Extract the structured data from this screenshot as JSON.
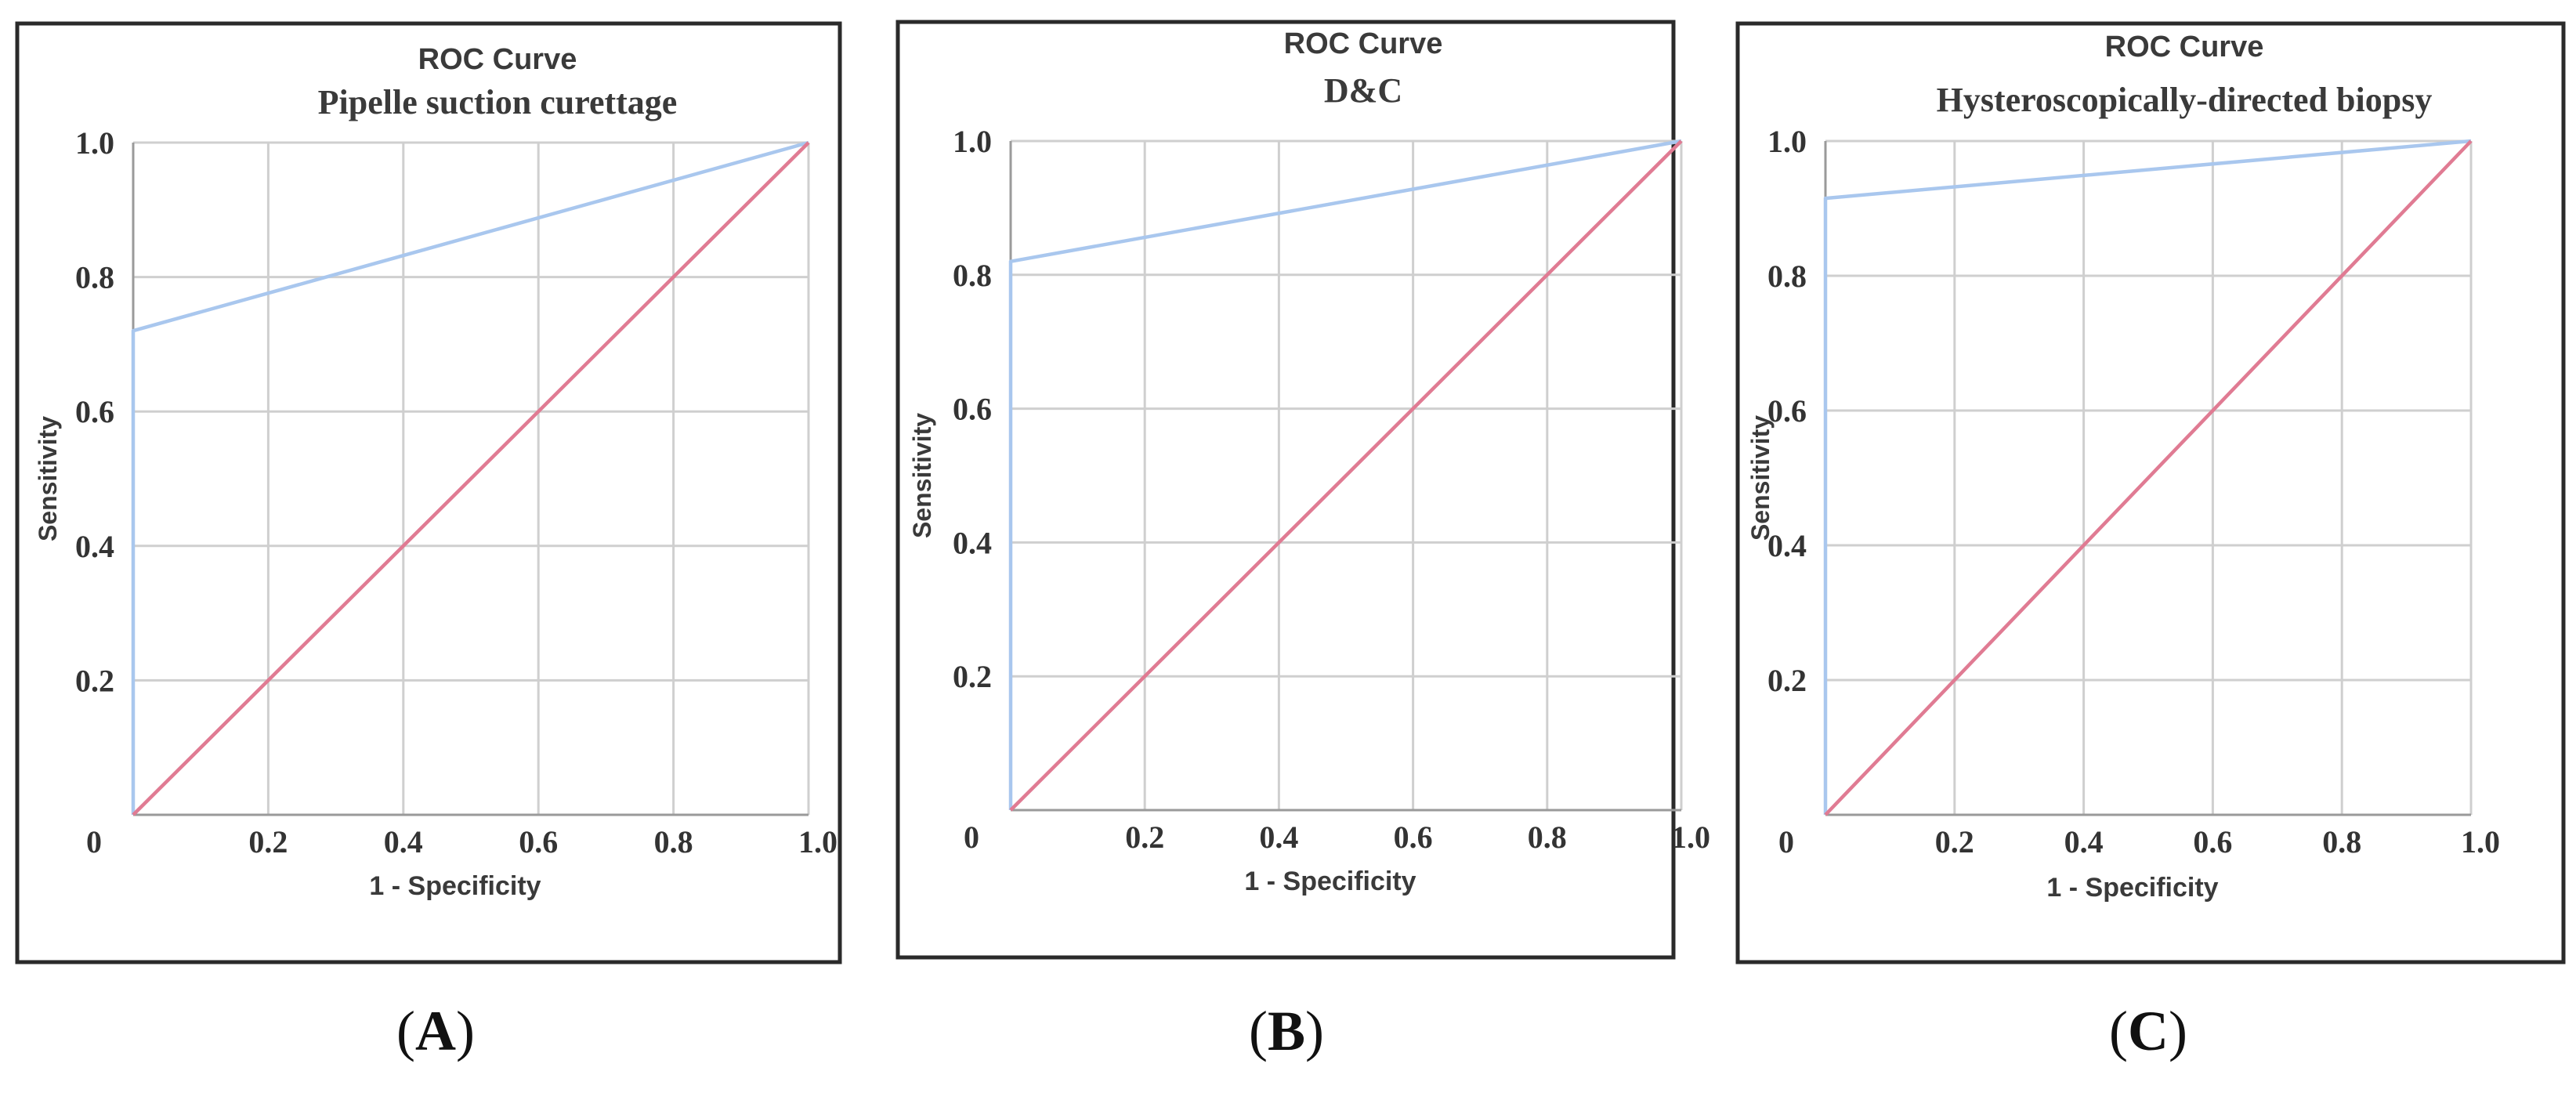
{
  "figure": {
    "panel_labels": [
      "(A)",
      "(B)",
      "(C)"
    ]
  },
  "colors": {
    "roc_curve": "#a9c7ee",
    "reference_line": "#e07b93",
    "grid": "#cfcfcf",
    "frame": "#2a2a2a"
  },
  "chart_data": [
    {
      "type": "line",
      "title": "ROC Curve",
      "subtitle": "Pipelle suction curettage",
      "xlabel": "1 - Specificity",
      "ylabel": "Sensitivity",
      "xlim": [
        0,
        1
      ],
      "ylim": [
        0,
        1
      ],
      "x_ticks": [
        "0",
        "0.2",
        "0.4",
        "0.6",
        "0.8",
        "1.0"
      ],
      "y_ticks": [
        "0.2",
        "0.4",
        "0.6",
        "0.8",
        "1.0"
      ],
      "grid": true,
      "series": [
        {
          "name": "ROC curve",
          "x": [
            0,
            0,
            1
          ],
          "y": [
            0,
            0.72,
            1
          ]
        },
        {
          "name": "Reference line",
          "x": [
            0,
            1
          ],
          "y": [
            0,
            1
          ]
        }
      ]
    },
    {
      "type": "line",
      "title": "ROC Curve",
      "subtitle": "D&C",
      "xlabel": "1 - Specificity",
      "ylabel": "Sensitivity",
      "xlim": [
        0,
        1
      ],
      "ylim": [
        0,
        1
      ],
      "x_ticks": [
        "0",
        "0.2",
        "0.4",
        "0.6",
        "0.8",
        "1.0"
      ],
      "y_ticks": [
        "0.2",
        "0.4",
        "0.6",
        "0.8",
        "1.0"
      ],
      "grid": true,
      "series": [
        {
          "name": "ROC curve",
          "x": [
            0,
            0,
            1
          ],
          "y": [
            0,
            0.82,
            1
          ]
        },
        {
          "name": "Reference line",
          "x": [
            0,
            1
          ],
          "y": [
            0,
            1
          ]
        }
      ]
    },
    {
      "type": "line",
      "title": "ROC Curve",
      "subtitle": "Hysteroscopically-directed biopsy",
      "xlabel": "1 - Specificity",
      "ylabel": "Sensitivity",
      "xlim": [
        0,
        1
      ],
      "ylim": [
        0,
        1
      ],
      "x_ticks": [
        "0",
        "0.2",
        "0.4",
        "0.6",
        "0.8",
        "1.0"
      ],
      "y_ticks": [
        "0.2",
        "0.4",
        "0.6",
        "0.8",
        "1.0"
      ],
      "grid": true,
      "series": [
        {
          "name": "ROC curve",
          "x": [
            0,
            0,
            1
          ],
          "y": [
            0,
            0.915,
            1
          ]
        },
        {
          "name": "Reference line",
          "x": [
            0,
            1
          ],
          "y": [
            0,
            1
          ]
        }
      ]
    }
  ]
}
